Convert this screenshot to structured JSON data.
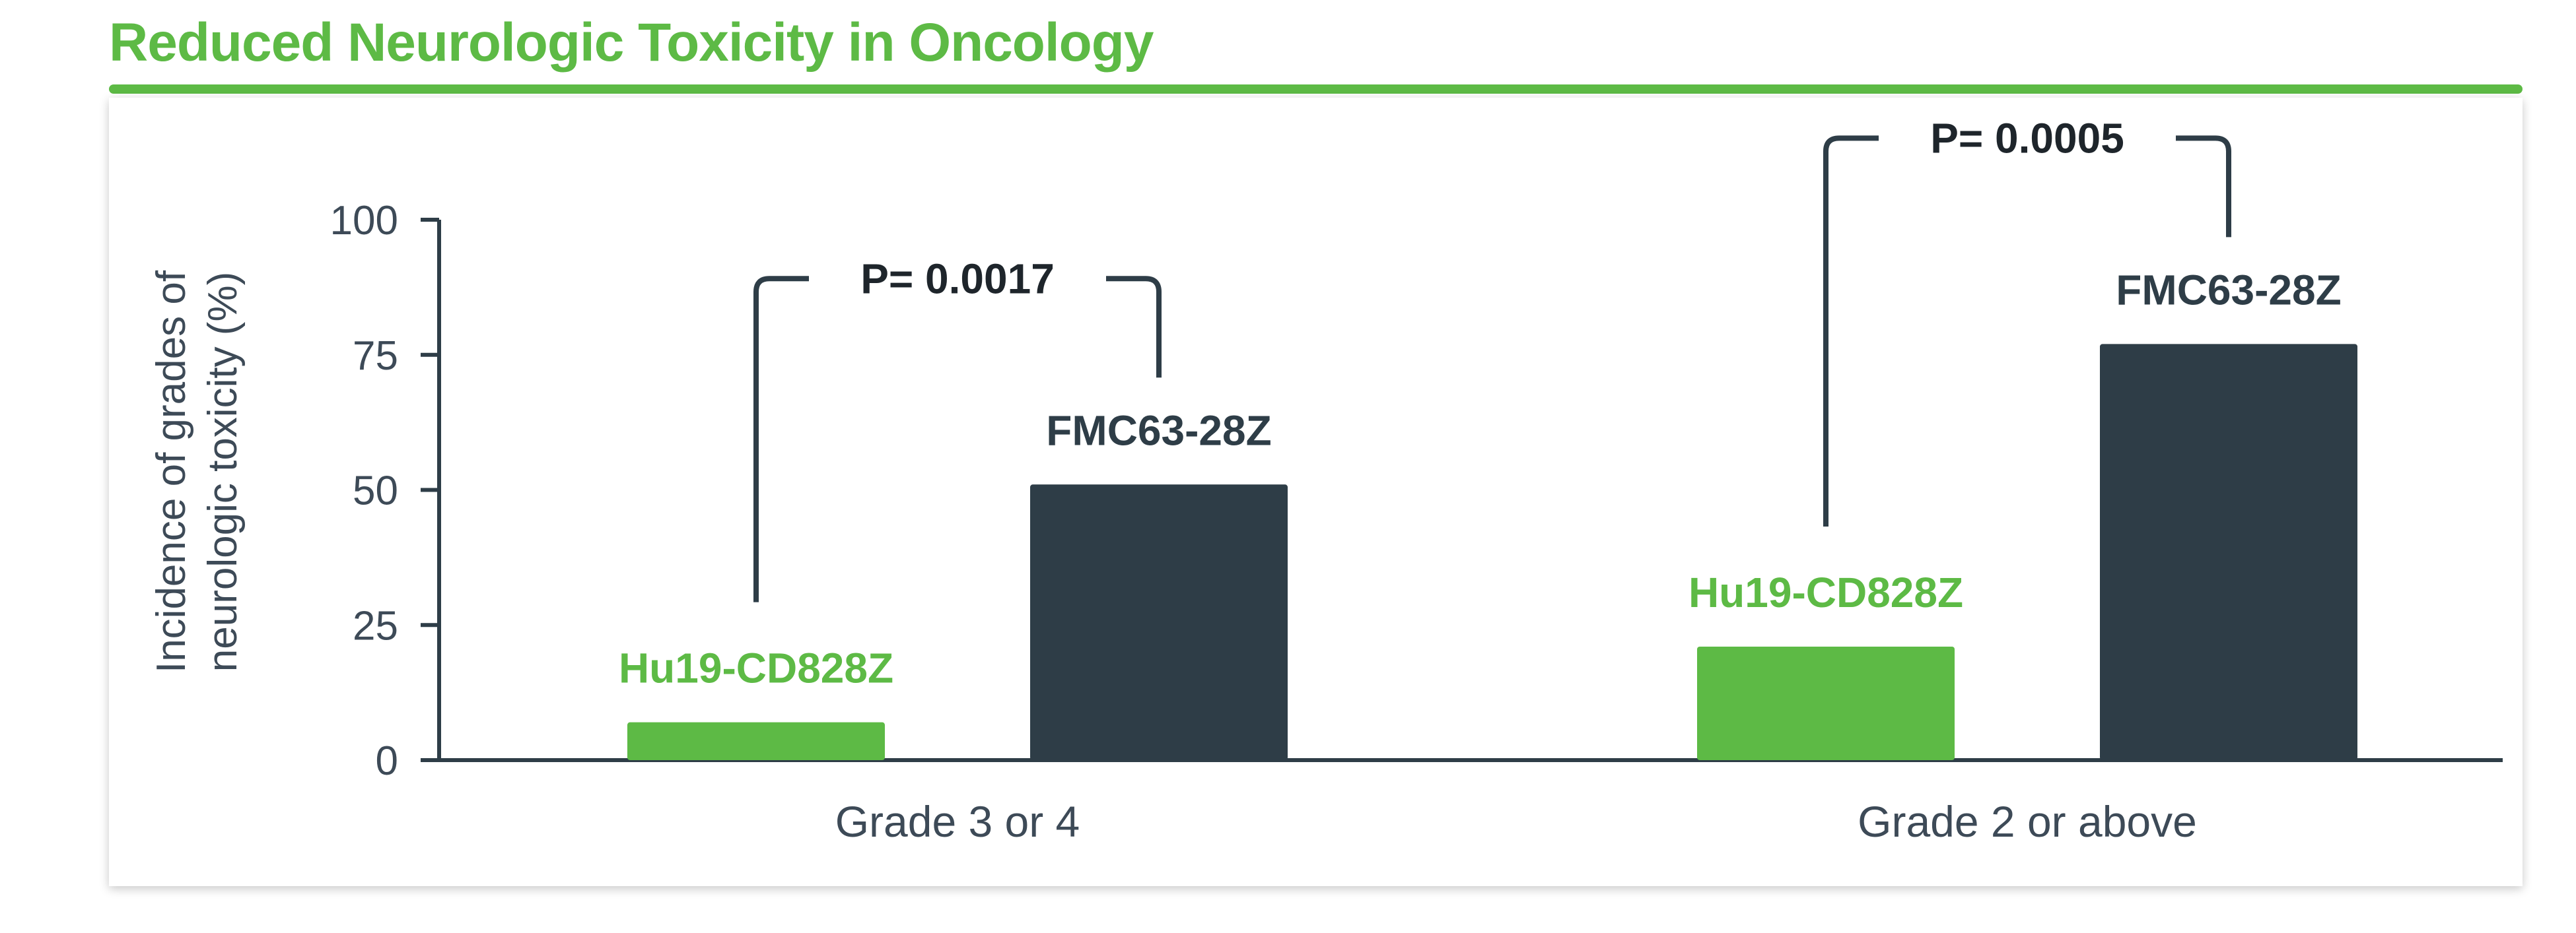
{
  "header": {
    "title": "Reduced Neurologic Toxicity in Oncology"
  },
  "colors": {
    "brand_green": "#5dba45",
    "dark_bar": "#2e3d47",
    "axis": "#2e3d47",
    "text": "#3d4a57"
  },
  "chart_data": {
    "type": "bar",
    "title": "",
    "xlabel": "",
    "ylabel": "Incidence of grades of neurologic toxicity (%)",
    "ylim": [
      0,
      100
    ],
    "yticks": [
      "0",
      "25",
      "50",
      "75",
      "100"
    ],
    "categories": [
      "Grade 3 or 4",
      "Grade 2 or above"
    ],
    "series": [
      {
        "name": "Hu19-CD828Z",
        "color": "#5dba45",
        "values": [
          7,
          21
        ]
      },
      {
        "name": "FMC63-28Z",
        "color": "#2e3d47",
        "values": [
          51,
          77
        ]
      }
    ],
    "annotations": [
      {
        "category": "Grade 3 or 4",
        "text": "P= 0.0017"
      },
      {
        "category": "Grade 2 or above",
        "text": "P= 0.0005"
      }
    ],
    "grid": false,
    "legend": "none"
  }
}
